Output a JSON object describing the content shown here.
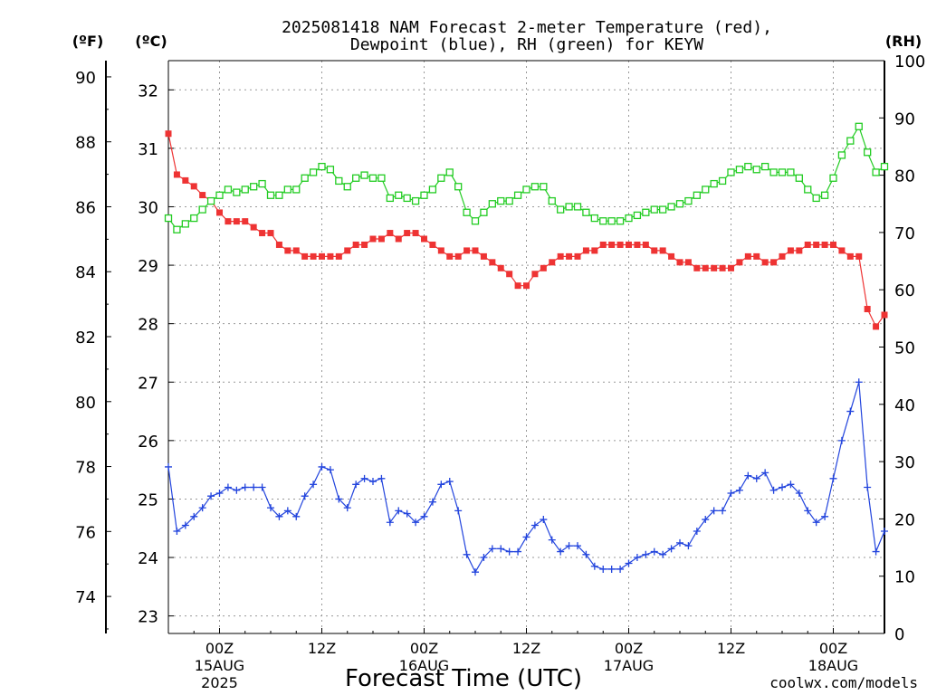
{
  "title_line1": "2025081418 NAM Forecast 2-meter Temperature (red),",
  "title_line2": "Dewpoint (blue), RH (green) for KEYW",
  "unit_f": "(ºF)",
  "unit_c": "(ºC)",
  "unit_rh": "(RH)",
  "xlabel": "Forecast Time (UTC)",
  "credit": "coolwx.com/models",
  "colors": {
    "temperature": "#ee3333",
    "dewpoint": "#2244dd",
    "rh": "#22cc22",
    "credit": "#ee4444",
    "grid": "#999999"
  },
  "chart_data": {
    "type": "line",
    "x_unit": "forecast hour from 2025-08-14 18Z",
    "xlim": [
      0,
      84
    ],
    "celsius_axis": {
      "range": [
        22.7,
        32.5
      ],
      "ticks": [
        "23",
        "24",
        "25",
        "26",
        "27",
        "28",
        "29",
        "30",
        "31",
        "32"
      ]
    },
    "fahrenheit_axis": {
      "range": [
        72.86,
        90.5
      ],
      "ticks": [
        "74",
        "76",
        "78",
        "80",
        "82",
        "84",
        "86",
        "88",
        "90"
      ]
    },
    "rh_axis": {
      "range": [
        0,
        100
      ],
      "ticks": [
        "0",
        "10",
        "20",
        "30",
        "40",
        "50",
        "60",
        "70",
        "80",
        "90",
        "100"
      ]
    },
    "x_ticks": [
      {
        "hour": 6,
        "line1": "00Z",
        "line2": "15AUG",
        "line3": "2025"
      },
      {
        "hour": 18,
        "line1": "12Z",
        "line2": "",
        "line3": ""
      },
      {
        "hour": 30,
        "line1": "00Z",
        "line2": "16AUG",
        "line3": ""
      },
      {
        "hour": 42,
        "line1": "12Z",
        "line2": "",
        "line3": ""
      },
      {
        "hour": 54,
        "line1": "00Z",
        "line2": "17AUG",
        "line3": ""
      },
      {
        "hour": 66,
        "line1": "12Z",
        "line2": "",
        "line3": ""
      },
      {
        "hour": 78,
        "line1": "00Z",
        "line2": "18AUG",
        "line3": ""
      }
    ],
    "series": [
      {
        "key": "temperature",
        "unit": "degC",
        "marker": "filled-square",
        "values": [
          31.25,
          30.55,
          30.45,
          30.35,
          30.2,
          30.1,
          29.9,
          29.75,
          29.75,
          29.75,
          29.65,
          29.55,
          29.55,
          29.35,
          29.25,
          29.25,
          29.15,
          29.15,
          29.15,
          29.15,
          29.15,
          29.25,
          29.35,
          29.35,
          29.45,
          29.45,
          29.55,
          29.45,
          29.55,
          29.55,
          29.45,
          29.35,
          29.25,
          29.15,
          29.15,
          29.25,
          29.25,
          29.15,
          29.05,
          28.95,
          28.85,
          28.65,
          28.65,
          28.85,
          28.95,
          29.05,
          29.15,
          29.15,
          29.15,
          29.25,
          29.25,
          29.35,
          29.35,
          29.35,
          29.35,
          29.35,
          29.35,
          29.25,
          29.25,
          29.15,
          29.05,
          29.05,
          28.95,
          28.95,
          28.95,
          28.95,
          28.95,
          29.05,
          29.15,
          29.15,
          29.05,
          29.05,
          29.15,
          29.25,
          29.25,
          29.35,
          29.35,
          29.35,
          29.35,
          29.25,
          29.15,
          29.15,
          28.25,
          27.95,
          28.15
        ]
      },
      {
        "key": "dewpoint",
        "unit": "degC",
        "marker": "plus",
        "values": [
          25.55,
          24.45,
          24.55,
          24.7,
          24.85,
          25.05,
          25.1,
          25.2,
          25.15,
          25.2,
          25.2,
          25.2,
          24.85,
          24.7,
          24.8,
          24.7,
          25.05,
          25.25,
          25.55,
          25.5,
          25.0,
          24.85,
          25.25,
          25.35,
          25.3,
          25.35,
          24.6,
          24.8,
          24.75,
          24.6,
          24.7,
          24.95,
          25.25,
          25.3,
          24.8,
          24.05,
          23.75,
          24.0,
          24.15,
          24.15,
          24.1,
          24.1,
          24.35,
          24.55,
          24.65,
          24.3,
          24.1,
          24.2,
          24.2,
          24.05,
          23.85,
          23.8,
          23.8,
          23.8,
          23.9,
          24.0,
          24.05,
          24.1,
          24.05,
          24.15,
          24.25,
          24.2,
          24.45,
          24.65,
          24.8,
          24.8,
          25.1,
          25.15,
          25.4,
          25.35,
          25.45,
          25.15,
          25.2,
          25.25,
          25.1,
          24.8,
          24.6,
          24.7,
          25.35,
          26.0,
          26.5,
          27.0,
          25.2,
          24.1,
          24.45
        ]
      },
      {
        "key": "rh",
        "unit": "percent",
        "marker": "open-square",
        "values": [
          72.5,
          70.5,
          71.5,
          72.5,
          74.0,
          75.5,
          76.5,
          77.5,
          77.0,
          77.5,
          78.0,
          78.5,
          76.5,
          76.5,
          77.5,
          77.5,
          79.5,
          80.5,
          81.5,
          81.0,
          79.0,
          78.0,
          79.5,
          80.0,
          79.5,
          79.5,
          76.0,
          76.5,
          76.0,
          75.5,
          76.5,
          77.5,
          79.5,
          80.5,
          78.0,
          73.5,
          72.0,
          73.5,
          75.0,
          75.5,
          75.5,
          76.5,
          77.5,
          78.0,
          78.0,
          75.5,
          74.0,
          74.5,
          74.5,
          73.5,
          72.5,
          72.0,
          72.0,
          72.0,
          72.5,
          73.0,
          73.5,
          74.0,
          74.0,
          74.5,
          75.0,
          75.5,
          76.5,
          77.5,
          78.5,
          79.0,
          80.5,
          81.0,
          81.5,
          81.0,
          81.5,
          80.5,
          80.5,
          80.5,
          79.5,
          77.5,
          76.0,
          76.5,
          79.5,
          83.5,
          86.0,
          88.5,
          84.0,
          80.5,
          81.5
        ]
      }
    ]
  }
}
